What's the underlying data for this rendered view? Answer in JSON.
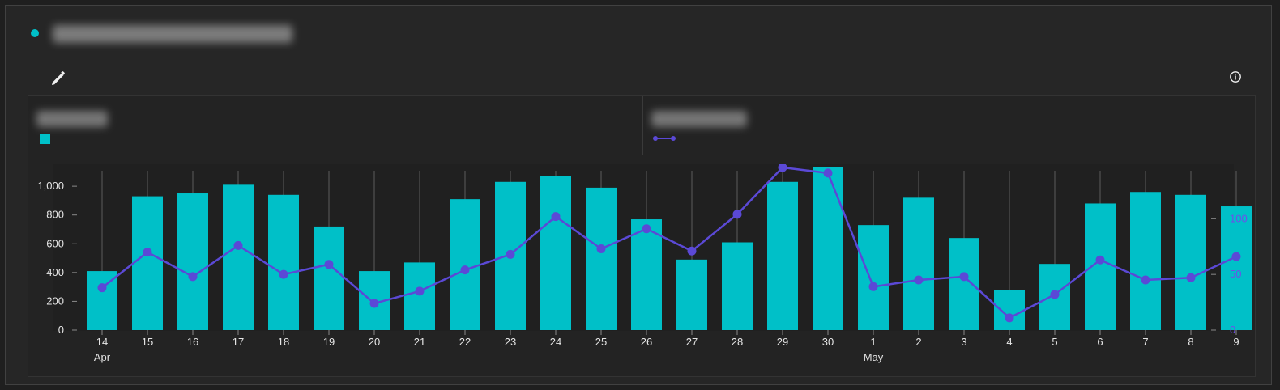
{
  "header": {
    "title": "",
    "accent_color": "#00c0c8"
  },
  "toolbar": {
    "edit_icon": "pencil-icon",
    "info_icon": "info-icon"
  },
  "legend": {
    "left": {
      "label": "",
      "color": "#00c0c8"
    },
    "right": {
      "label": "",
      "color": "#5b49d6"
    }
  },
  "chart_data": {
    "type": "bar-line",
    "categories": [
      "14",
      "15",
      "16",
      "17",
      "18",
      "19",
      "20",
      "21",
      "22",
      "23",
      "24",
      "25",
      "26",
      "27",
      "28",
      "29",
      "30",
      "1",
      "2",
      "3",
      "4",
      "5",
      "6",
      "7",
      "8",
      "9"
    ],
    "month_labels": [
      {
        "index": 0,
        "text": "Apr"
      },
      {
        "index": 17,
        "text": "May"
      }
    ],
    "series": [
      {
        "type": "bar",
        "color": "#00c0c8",
        "values": [
          410,
          930,
          950,
          1010,
          940,
          720,
          410,
          470,
          910,
          1030,
          1070,
          990,
          770,
          490,
          610,
          1030,
          1130,
          730,
          920,
          640,
          280,
          460,
          880,
          960,
          940,
          860
        ]
      },
      {
        "type": "line",
        "color": "#5b49d6",
        "values": [
          38,
          70,
          48,
          76,
          50,
          59,
          24,
          35,
          54,
          68,
          102,
          73,
          91,
          71,
          104,
          146,
          141,
          39,
          45,
          48,
          11,
          32,
          63,
          45,
          47,
          66
        ]
      }
    ],
    "left_axis": {
      "ticks": [
        0,
        200,
        400,
        600,
        800,
        1000
      ],
      "tick_labels": [
        "0",
        "200",
        "400",
        "600",
        "800",
        "1,000"
      ],
      "range": [
        0,
        1130
      ]
    },
    "right_axis": {
      "ticks": [
        0,
        50,
        100
      ],
      "tick_labels": [
        "0",
        "50",
        "100"
      ],
      "range": [
        0,
        146
      ]
    },
    "gridlines": "vertical"
  }
}
